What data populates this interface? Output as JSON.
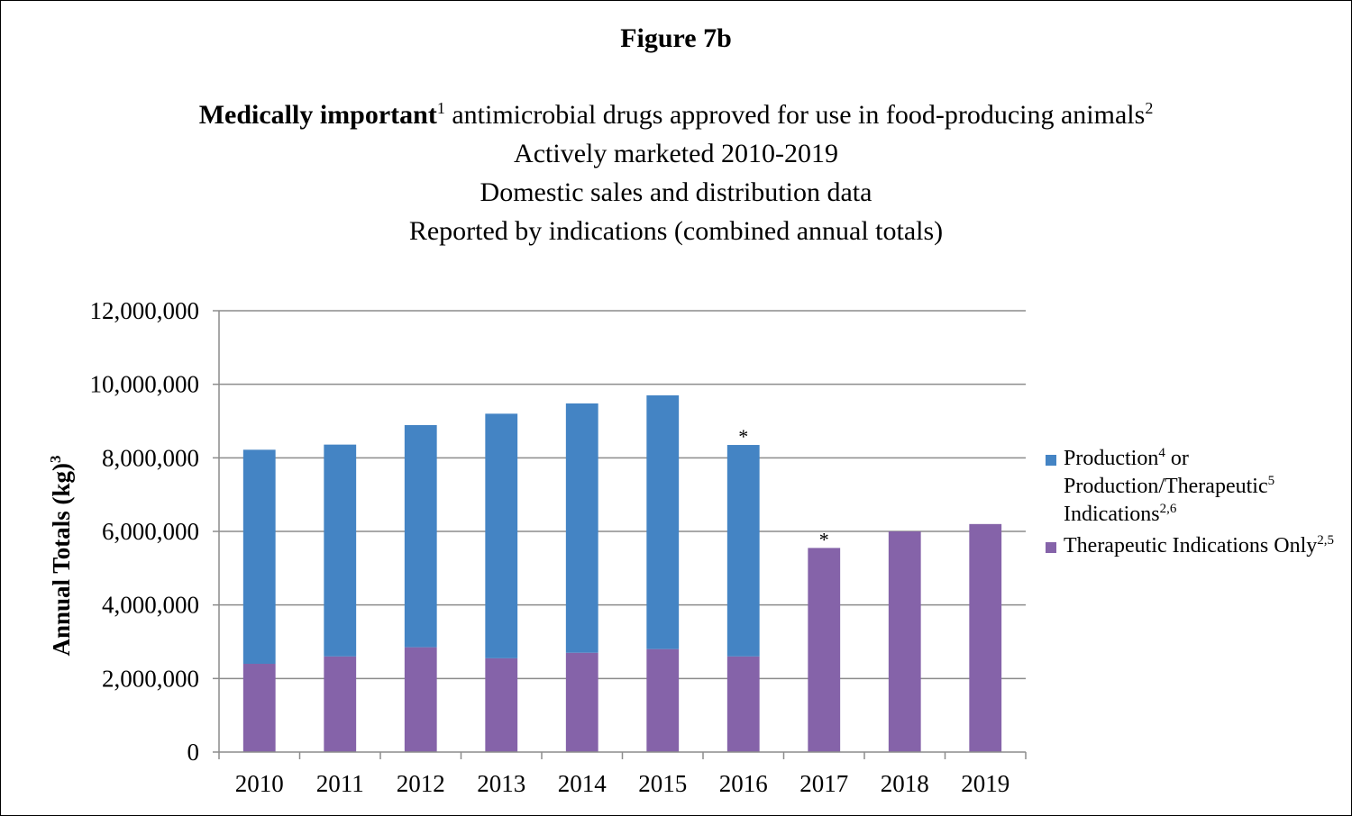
{
  "figure_label": "Figure 7b",
  "title": {
    "bold_part": "Medically important",
    "sup_1": "1",
    "rest": " antimicrobial drugs approved for use in food-producing animals",
    "sup_2": "2"
  },
  "subtitles": [
    "Actively marketed 2010-2019",
    "Domestic sales and distribution data",
    "Reported by indications (combined annual totals)"
  ],
  "y_axis_label": {
    "text": "Annual Totals (kg)",
    "sup": "3"
  },
  "legend": [
    {
      "text_a": "Production",
      "sup_a": "4",
      "text_b": " or Production/Therapeutic",
      "sup_b": "5",
      "text_c": " Indications",
      "sup_c": "2,6",
      "color": "#4484c4"
    },
    {
      "text_a": "Therapeutic Indications Only",
      "sup_a": "2,5",
      "color": "#8563a9"
    }
  ],
  "chart_data": {
    "type": "bar",
    "stacked": true,
    "categories": [
      "2010",
      "2011",
      "2012",
      "2013",
      "2014",
      "2015",
      "2016",
      "2017",
      "2018",
      "2019"
    ],
    "series": [
      {
        "name": "Therapeutic Indications Only",
        "color": "#8563a9",
        "values": [
          2400000,
          2600000,
          2850000,
          2550000,
          2700000,
          2800000,
          2600000,
          5550000,
          6000000,
          6200000
        ]
      },
      {
        "name": "Production or Production/Therapeutic Indications",
        "color": "#4484c4",
        "values": [
          5820000,
          5760000,
          6040000,
          6650000,
          6780000,
          6900000,
          5750000,
          0,
          0,
          0
        ]
      }
    ],
    "annotations": [
      {
        "category": "2016",
        "text": "*"
      },
      {
        "category": "2017",
        "text": "*"
      }
    ],
    "ylim": [
      0,
      12000000
    ],
    "yticks": [
      0,
      2000000,
      4000000,
      6000000,
      8000000,
      10000000,
      12000000
    ],
    "ytick_labels": [
      "0",
      "2,000,000",
      "4,000,000",
      "6,000,000",
      "8,000,000",
      "10,000,000",
      "12,000,000"
    ],
    "grid": true,
    "legend_position": "right"
  }
}
